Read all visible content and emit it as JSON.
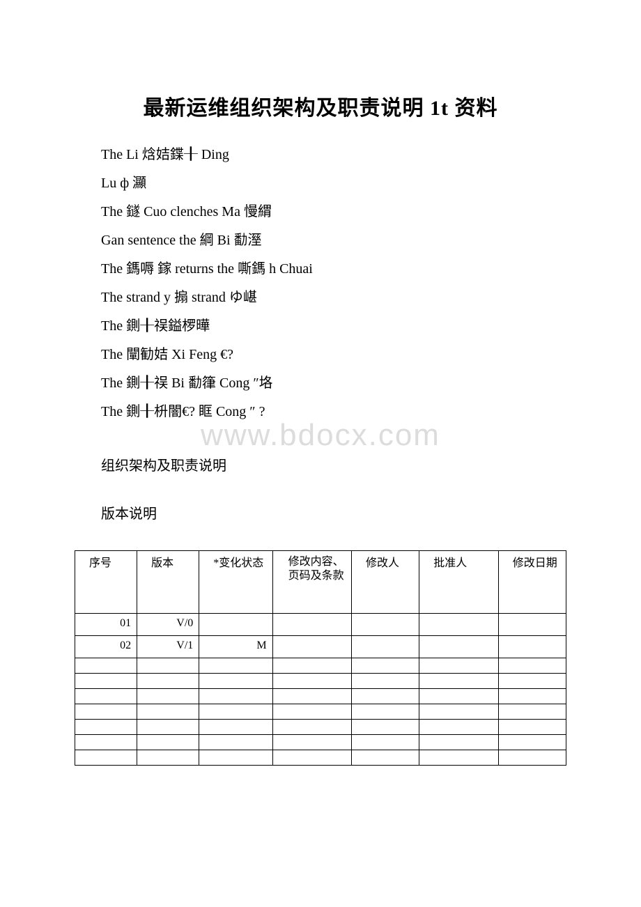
{
  "title": "最新运维组织架构及职责说明 1t 资料",
  "body_lines": [
    "The Li 焓姞鍱╂ Ding",
    "Lu ф 灦",
    "The 鐩 Cuo clenches Ma 慢緭",
    "Gan sentence the 綱 Bi 勫溼",
    "The 鎷嗕 鎵 returns the 嘶鎷 h  Chuai",
    "The strand y 搧 strand ゆ嵁",
    "The 鍘╂祦鎰椤曄",
    "The 闡勧姞 Xi Feng €?",
    "The 鍘╂祦 Bi 勫箻 Cong ″垎",
    "The 鍘╂枡闇€? 眶 Cong ″ ?"
  ],
  "watermark": "www.bdocx.com",
  "section1": "组织架构及职责说明",
  "section2": "版本说明",
  "table": {
    "headers": [
      "序号",
      "版本",
      "*变化状态",
      "修改内容、页码及条款",
      "修改人",
      "批准人",
      "修改日期"
    ],
    "rows": [
      [
        "01",
        "V/0",
        "",
        "",
        "",
        "",
        ""
      ],
      [
        "02",
        "V/1",
        "M",
        "",
        "",
        "",
        ""
      ]
    ],
    "empty_row_count": 7
  },
  "colors": {
    "text": "#000000",
    "watermark": "#dcdcdc",
    "background": "#ffffff",
    "border": "#000000"
  }
}
